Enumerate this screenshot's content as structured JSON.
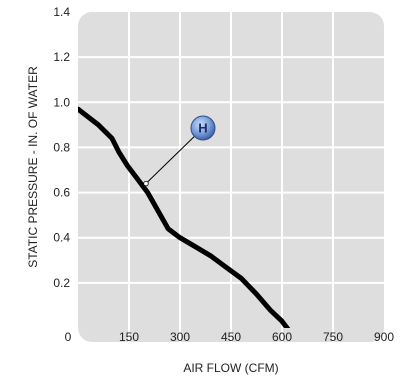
{
  "chart_data": {
    "type": "line",
    "title": "",
    "xlabel": "AIR FLOW (CFM)",
    "ylabel": "STATIC PRESSURE - IN. OF WATER",
    "xlim": [
      0,
      900
    ],
    "ylim": [
      0,
      1.4
    ],
    "x_ticks": [
      0,
      150,
      300,
      450,
      600,
      750,
      900
    ],
    "x_tick_labels": [
      "0",
      "150",
      "300",
      "450",
      "600",
      "750",
      "900"
    ],
    "y_ticks": [
      0.2,
      0.4,
      0.6,
      0.8,
      1.0,
      1.2,
      1.4
    ],
    "y_tick_labels": [
      "0.2",
      "0.4",
      "0.6",
      "0.8",
      "1.0",
      "1.2",
      "1.4"
    ],
    "grid": true,
    "series": [
      {
        "name": "H",
        "x": [
          0,
          60,
          100,
          120,
          145,
          175,
          205,
          235,
          265,
          300,
          345,
          390,
          435,
          480,
          525,
          565,
          600,
          625
        ],
        "y": [
          0.97,
          0.9,
          0.84,
          0.78,
          0.72,
          0.66,
          0.6,
          0.52,
          0.44,
          0.4,
          0.36,
          0.32,
          0.27,
          0.22,
          0.15,
          0.08,
          0.03,
          -0.02
        ]
      }
    ],
    "callout": {
      "label": "H",
      "x": 200,
      "y": 0.64
    },
    "colors": {
      "plot_bg": "#dedede",
      "grid": "#ffffff",
      "line": "#000000",
      "badge": "#5e86c8"
    }
  }
}
